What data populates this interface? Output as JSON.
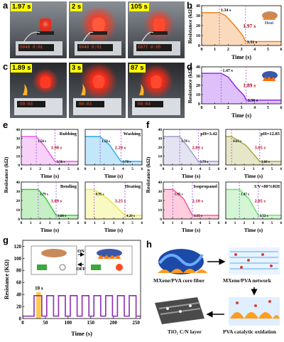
{
  "panels": {
    "a": "a",
    "b": "b",
    "c": "c",
    "d": "d",
    "e": "e",
    "f": "f",
    "g": "g",
    "h": "h"
  },
  "photo_a": {
    "frames": [
      "1.97 s",
      "2 s",
      "105 s"
    ],
    "display_readouts": [
      "0048  0:01",
      "0048  0:01",
      "0077  0:05"
    ]
  },
  "photo_c": {
    "frames": [
      "1.89 s",
      "3 s",
      "87 s"
    ],
    "display_readouts": [
      "00:03",
      "00:03",
      "00:04"
    ]
  },
  "axes": {
    "resistance_label": "Resistance (kΩ)",
    "time_label": "Time (s)",
    "g_time_label": "Time (s)",
    "g_resistance_label": "Resistance (KΩ)"
  },
  "colors": {
    "b": "#f07a10",
    "d": "#8a1cf0",
    "rubbing": "#e65ae6",
    "washing": "#27a9ec",
    "bending": "#31c431",
    "heating": "#eaea2a",
    "ph_low": "#9a9ccc",
    "ph_high": "#a7a63a",
    "isopropanol": "#ff4d8a",
    "uv": "#63e063",
    "g": "#8f2bb0",
    "annot": "#b3001b",
    "dash": "#a04be0"
  },
  "chart_data": [
    {
      "id": "b",
      "type": "line",
      "xlabel": "Time (s)",
      "ylabel": "Resistance (kΩ)",
      "xlim": [
        0,
        6
      ],
      "ylim": [
        0,
        40
      ],
      "xticks": [
        0,
        1,
        2,
        3,
        4,
        5,
        6
      ],
      "yticks": [
        0,
        10,
        20,
        30,
        40
      ],
      "x": [
        0,
        1.34,
        1.8,
        2.5,
        3.1,
        3.31,
        6
      ],
      "y": [
        33,
        33,
        30,
        20,
        10,
        4,
        4
      ],
      "markers": [
        1.34,
        3.31
      ],
      "annotations": [
        "1.34 s",
        "1.97 s",
        "3.31 s"
      ],
      "inset_label": "Heat"
    },
    {
      "id": "d",
      "type": "line",
      "xlabel": "Time (s)",
      "ylabel": "Resistance (kΩ)",
      "xlim": [
        0,
        6
      ],
      "ylim": [
        0,
        40
      ],
      "xticks": [
        0,
        1,
        2,
        3,
        4,
        5,
        6
      ],
      "yticks": [
        0,
        10,
        20,
        30,
        40
      ],
      "x": [
        0,
        1.47,
        2.0,
        2.6,
        3.2,
        3.36,
        6
      ],
      "y": [
        33,
        33,
        29,
        18,
        9,
        4,
        4
      ],
      "markers": [
        1.47,
        3.36
      ],
      "annotations": [
        "1.47 s",
        "1.89 s",
        "3.36 s"
      ],
      "inset_label": "Fire"
    },
    {
      "id": "rubbing",
      "type": "line",
      "label": "Rubbing",
      "xlim": [
        0,
        6
      ],
      "ylim": [
        0,
        40
      ],
      "x": [
        0,
        1.58,
        2.4,
        3.56,
        6
      ],
      "y": [
        32,
        32,
        22,
        4,
        4
      ],
      "markers": [
        1.58,
        3.56
      ],
      "annotations": [
        "1.58 s",
        "1.98 s",
        "3.56 s"
      ]
    },
    {
      "id": "washing",
      "type": "line",
      "label": "Washing",
      "xlim": [
        0,
        6
      ],
      "ylim": [
        0,
        40
      ],
      "x": [
        0,
        1.58,
        2.6,
        3.78,
        6
      ],
      "y": [
        32,
        32,
        22,
        4,
        4
      ],
      "markers": [
        1.58,
        3.78
      ],
      "annotations": [
        "1.58 s",
        "2.20 s",
        "3.78 s"
      ]
    },
    {
      "id": "bending",
      "type": "line",
      "label": "Bending",
      "xlim": [
        0,
        6
      ],
      "ylim": [
        0,
        40
      ],
      "x": [
        0,
        1.79,
        2.6,
        3.68,
        6
      ],
      "y": [
        32,
        32,
        22,
        4,
        4
      ],
      "markers": [
        1.79,
        3.68
      ],
      "annotations": [
        "1.79 s",
        "1.89 s",
        "3.68 s"
      ]
    },
    {
      "id": "heating",
      "type": "line",
      "label": "Heating",
      "xlim": [
        0,
        6
      ],
      "ylim": [
        0,
        40
      ],
      "x": [
        0,
        0.95,
        2.4,
        4.2,
        6
      ],
      "y": [
        32,
        32,
        22,
        4,
        4
      ],
      "markers": [
        0.95,
        4.2
      ],
      "annotations": [
        "0.95 s",
        "3.25 s",
        "4.20 s"
      ]
    },
    {
      "id": "ph_low",
      "type": "line",
      "label": "pH=3.42",
      "xlim": [
        0,
        6
      ],
      "ylim": [
        0,
        40
      ],
      "x": [
        0,
        1.78,
        2.7,
        3.79,
        6
      ],
      "y": [
        32,
        32,
        20,
        4,
        4
      ],
      "markers": [
        1.78,
        3.79
      ],
      "annotations": [
        "1.78 s",
        "2.01 s",
        "3.79 s"
      ]
    },
    {
      "id": "ph_high",
      "type": "line",
      "label": "pH=12.85",
      "xlim": [
        0,
        6
      ],
      "ylim": [
        0,
        40
      ],
      "x": [
        0,
        0.63,
        2.2,
        3.68,
        6
      ],
      "y": [
        32,
        32,
        22,
        4,
        4
      ],
      "markers": [
        0.63,
        3.68
      ],
      "annotations": [
        "0.63 s",
        "3.05 s",
        "3.68 s"
      ]
    },
    {
      "id": "isopropanol",
      "type": "line",
      "label": "Isopropanol",
      "xlim": [
        0,
        6
      ],
      "ylim": [
        0,
        40
      ],
      "x": [
        0,
        1.05,
        2.2,
        3.15,
        6
      ],
      "y": [
        32,
        32,
        22,
        4,
        4
      ],
      "markers": [
        1.05,
        3.15
      ],
      "annotations": [
        "1.05 s",
        "2.10 s",
        "3.15 s"
      ]
    },
    {
      "id": "uv",
      "type": "line",
      "label": "UV+80%RH",
      "xlim": [
        0,
        6
      ],
      "ylim": [
        0,
        40
      ],
      "x": [
        0,
        1.47,
        2.5,
        3.52,
        6
      ],
      "y": [
        32,
        32,
        22,
        4,
        4
      ],
      "markers": [
        1.47,
        3.52
      ],
      "annotations": [
        "1.47 s",
        "2.05 s",
        "3.52 s"
      ]
    },
    {
      "id": "g",
      "type": "line",
      "xlabel": "Time (s)",
      "ylabel": "Resistance (KΩ)",
      "xlim": [
        0,
        260
      ],
      "ylim": [
        0,
        130
      ],
      "xticks": [
        0,
        50,
        100,
        150,
        200,
        250
      ],
      "yticks": [
        0,
        20,
        40,
        60,
        80,
        100,
        120
      ],
      "on_intervals": [
        [
          25,
          42
        ],
        [
          53,
          68
        ],
        [
          79,
          94
        ],
        [
          105,
          120
        ],
        [
          131,
          146
        ],
        [
          157,
          172
        ],
        [
          183,
          198
        ],
        [
          209,
          224
        ],
        [
          235,
          250
        ]
      ],
      "high": 38,
      "low": 4,
      "highlight": [
        30,
        40
      ],
      "annotations": [
        "10 s"
      ],
      "switch_labels": [
        "ON",
        "OFF"
      ]
    }
  ],
  "panel_h": {
    "labels": [
      "MXene/PVA core fiber",
      "MXene/PVA network",
      "TiO₂ C/N layer",
      "PVA catalytic oxidation"
    ]
  }
}
